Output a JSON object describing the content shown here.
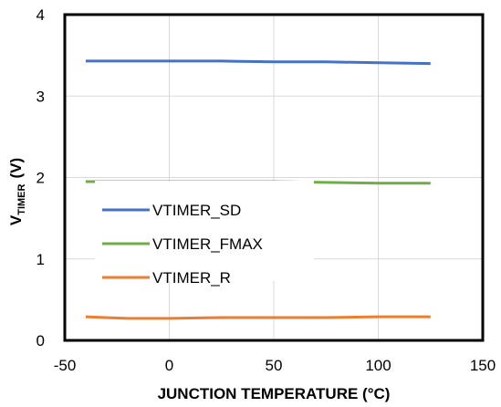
{
  "chart_data": {
    "type": "line",
    "xlabel": "JUNCTION TEMPERATURE (°C)",
    "ylabel": {
      "main": "V",
      "subscript": "TIMER",
      "unit": "(V)"
    },
    "xlim": [
      -50,
      150
    ],
    "ylim": [
      0,
      4
    ],
    "xticks": [
      -50,
      0,
      50,
      100,
      150
    ],
    "yticks": [
      0,
      1,
      2,
      3,
      4
    ],
    "grid": true,
    "legend_position": "left-center",
    "series": [
      {
        "name": "VTIMER_SD",
        "color": "#4472C4",
        "x": [
          -40,
          -20,
          0,
          25,
          50,
          75,
          100,
          125
        ],
        "y": [
          3.43,
          3.43,
          3.43,
          3.43,
          3.42,
          3.42,
          3.41,
          3.4
        ]
      },
      {
        "name": "VTIMER_FMAX",
        "color": "#70AD47",
        "x": [
          -40,
          -20,
          0,
          25,
          50,
          75,
          100,
          125
        ],
        "y": [
          1.95,
          1.95,
          1.95,
          1.95,
          1.95,
          1.94,
          1.93,
          1.93
        ]
      },
      {
        "name": "VTIMER_R",
        "color": "#ED7D31",
        "x": [
          -40,
          -20,
          0,
          25,
          50,
          75,
          100,
          125
        ],
        "y": [
          0.29,
          0.27,
          0.27,
          0.28,
          0.28,
          0.28,
          0.29,
          0.29
        ]
      }
    ]
  }
}
